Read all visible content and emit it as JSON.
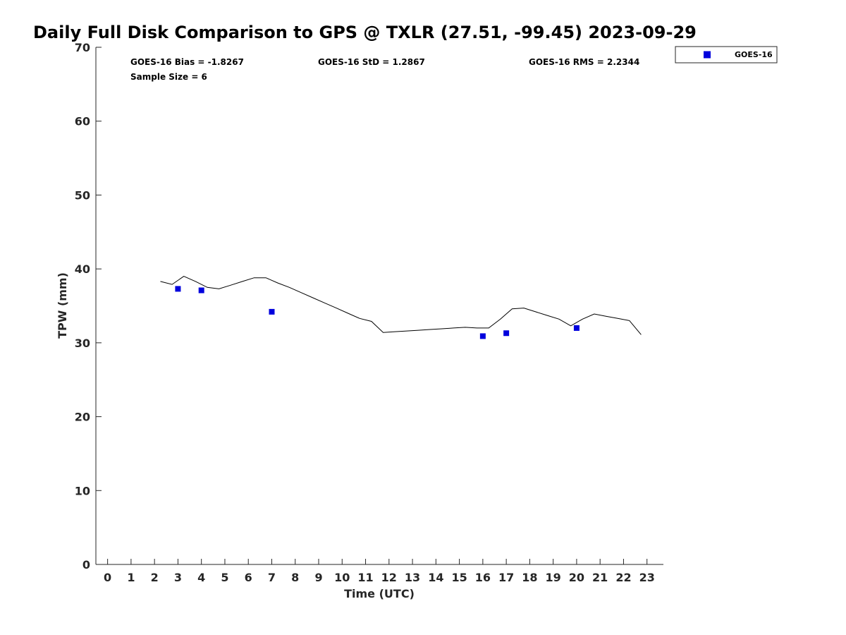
{
  "chart_data": {
    "type": "scatter",
    "title": "Daily Full Disk Comparison to GPS @ TXLR (27.51, -99.45) 2023-09-29",
    "xlabel": "Time (UTC)",
    "ylabel": "TPW (mm)",
    "xlim": [
      -0.5,
      23.7
    ],
    "ylim": [
      0,
      70
    ],
    "xticks": [
      0,
      1,
      2,
      3,
      4,
      5,
      6,
      7,
      8,
      9,
      10,
      11,
      12,
      13,
      14,
      15,
      16,
      17,
      18,
      19,
      20,
      21,
      22,
      23
    ],
    "yticks": [
      0,
      10,
      20,
      30,
      40,
      50,
      60,
      70
    ],
    "grid": false,
    "legend_position": "top-right (outside plot)",
    "stats": {
      "bias": "GOES-16 Bias = -1.8267",
      "std": "GOES-16 StD = 1.2867",
      "rms": "GOES-16 RMS = 2.2344",
      "sample": "Sample Size = 6"
    },
    "series": [
      {
        "name": "GOES-16",
        "kind": "scatter",
        "marker": "square",
        "color": "#0000dd",
        "x": [
          3,
          4,
          7,
          16,
          17,
          20
        ],
        "y": [
          37.3,
          37.1,
          34.2,
          30.9,
          31.3,
          32.0
        ]
      },
      {
        "kind": "line",
        "color": "#000000",
        "x": [
          2.25,
          2.75,
          3.25,
          3.75,
          4.25,
          4.75,
          5.25,
          5.75,
          6.25,
          6.75,
          7.25,
          7.75,
          8.25,
          8.75,
          9.25,
          9.75,
          10.25,
          10.75,
          11.25,
          11.75,
          12.25,
          12.75,
          13.25,
          13.75,
          14.25,
          14.75,
          15.25,
          15.75,
          16.25,
          16.75,
          17.25,
          17.75,
          18.25,
          18.75,
          19.25,
          19.75,
          20.25,
          20.75,
          21.25,
          21.75,
          22.25,
          22.75
        ],
        "y": [
          38.3,
          37.9,
          39.0,
          38.3,
          37.5,
          37.3,
          37.8,
          38.3,
          38.8,
          38.8,
          38.1,
          37.5,
          36.8,
          36.1,
          35.4,
          34.7,
          34.0,
          33.3,
          32.9,
          31.4,
          31.5,
          31.6,
          31.7,
          31.8,
          31.9,
          32.0,
          32.1,
          32.0,
          32.0,
          33.2,
          34.6,
          34.7,
          34.2,
          33.7,
          33.2,
          32.3,
          33.2,
          33.9,
          33.6,
          33.3,
          33.0,
          31.1
        ]
      }
    ]
  }
}
